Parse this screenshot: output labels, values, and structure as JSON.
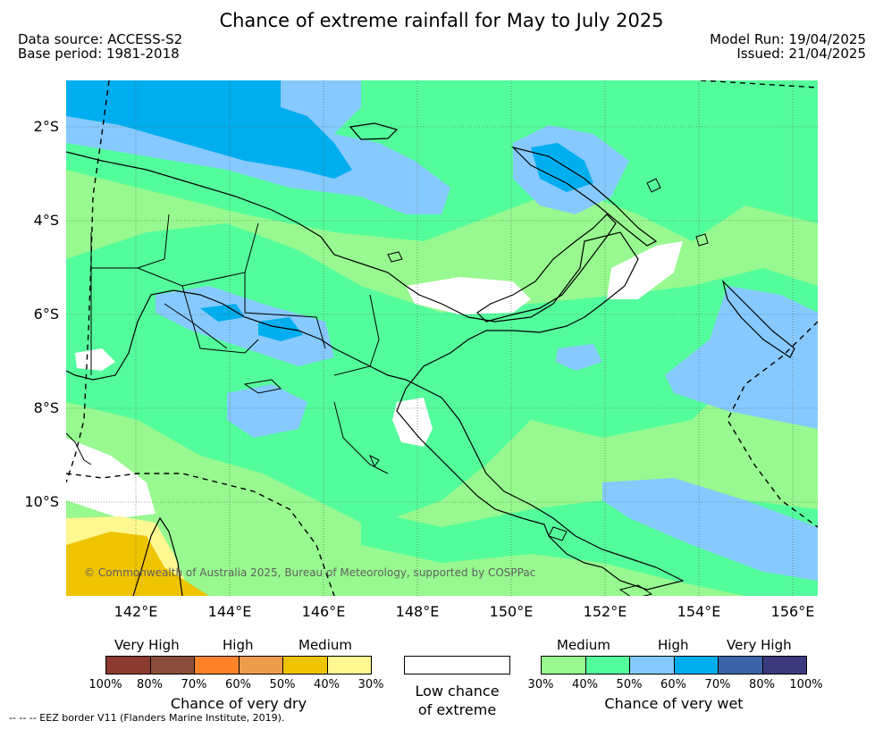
{
  "header": {
    "title": "Chance of extreme rainfall for May to July 2025",
    "data_source": "Data source: ACCESS-S2",
    "base_period": "Base period: 1981-2018",
    "model_run": "Model Run: 19/04/2025",
    "issued": "Issued: 21/04/2025"
  },
  "map": {
    "lat_labels": [
      "2°S",
      "4°S",
      "6°S",
      "8°S",
      "10°S"
    ],
    "lon_labels": [
      "142°E",
      "144°E",
      "146°E",
      "148°E",
      "150°E",
      "152°E",
      "154°E",
      "156°E"
    ],
    "copyright": "© Commonwealth of Australia 2025, Bureau of Meteorology, supported by COSPPac"
  },
  "legend": {
    "dry": {
      "headings": [
        "Very High",
        "High",
        "Medium"
      ],
      "colors": [
        "#8c3a2f",
        "#8c4e3a",
        "#ff8128",
        "#ef9c4c",
        "#eec400",
        "#fff78f"
      ],
      "ticks": [
        "100%",
        "80%",
        "70%",
        "60%",
        "50%",
        "40%",
        "30%"
      ],
      "caption": "Chance of very dry"
    },
    "low": {
      "color": "#ffffff",
      "caption_line1": "Low chance",
      "caption_line2": "of extreme"
    },
    "wet": {
      "headings": [
        "Medium",
        "High",
        "Very High"
      ],
      "colors": [
        "#97f98f",
        "#54fd9c",
        "#86c9ff",
        "#00aeef",
        "#3a64a7",
        "#3c3a7e"
      ],
      "ticks": [
        "30%",
        "40%",
        "50%",
        "60%",
        "70%",
        "80%",
        "100%"
      ],
      "caption": "Chance of very wet"
    },
    "eez_note": "--  --  -- EEZ border V11 (Flanders Marine Institute, 2019)."
  }
}
